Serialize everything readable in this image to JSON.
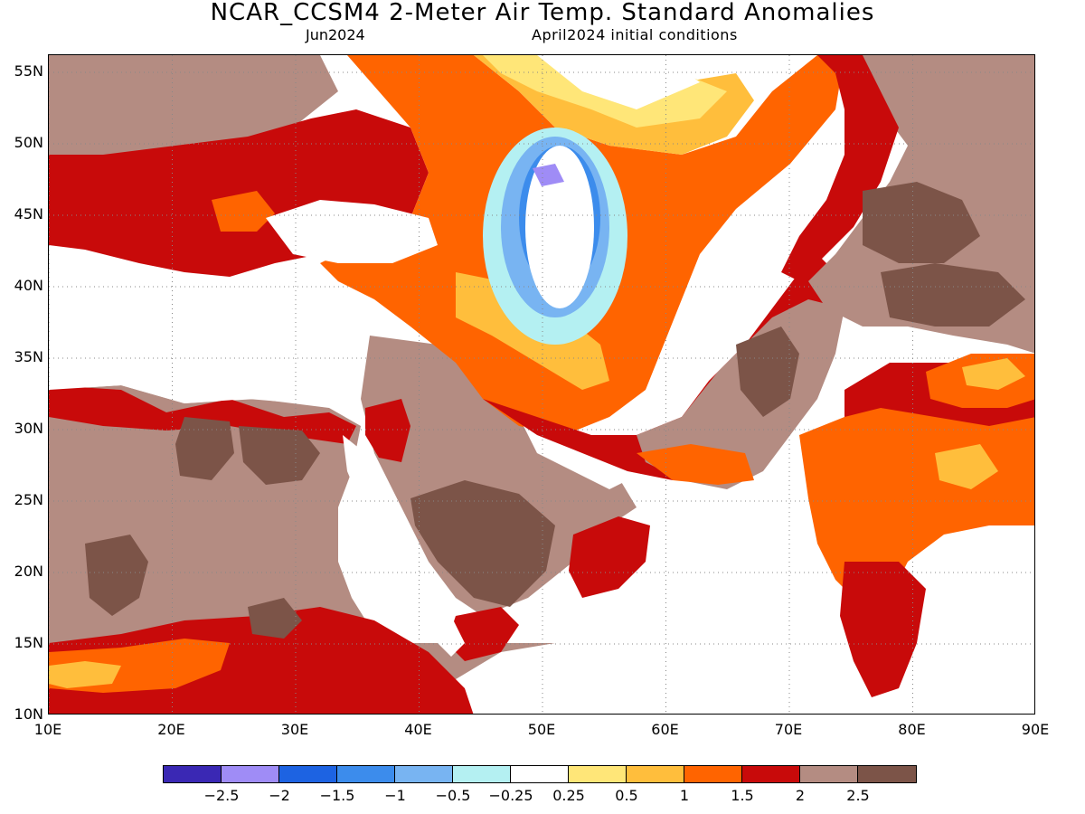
{
  "header": {
    "title": "NCAR_CCSM4 2-Meter Air Temp. Standard Anomalies",
    "valid_month": "Jun2024",
    "initial_conditions": "April2024 initial conditions"
  },
  "axes": {
    "lat_labels": [
      "55N",
      "50N",
      "45N",
      "40N",
      "35N",
      "30N",
      "25N",
      "20N",
      "15N",
      "10N"
    ],
    "lon_labels": [
      "10E",
      "20E",
      "30E",
      "40E",
      "50E",
      "60E",
      "70E",
      "80E",
      "90E"
    ],
    "lat_range": [
      10,
      56.2
    ],
    "lon_range": [
      10,
      90
    ],
    "grid": "dotted"
  },
  "colorbar": {
    "colors": [
      "#3a28b4",
      "#9f8cf6",
      "#1d63e2",
      "#3c8cec",
      "#78b4f2",
      "#b4f0f2",
      "#ffffff",
      "#ffe678",
      "#ffbe3c",
      "#ff6400",
      "#c80a0a",
      "#b48c82",
      "#7c5448"
    ],
    "labels": [
      "-2.5",
      "-2",
      "-1.5",
      "-1",
      "-0.5",
      "-0.25",
      "0.25",
      "0.5",
      "1",
      "1.5",
      "2",
      "2.5"
    ]
  },
  "map_fill": {
    "brown_light": "#b48c82",
    "brown_dark": "#7c5448",
    "red": "#c80a0a",
    "orange": "#ff6400",
    "light_orange": "#ffbe3c",
    "yellow": "#ffe678",
    "blue": "#3c8cec",
    "light_blue": "#78b4f2",
    "cyan": "#b4f0f2",
    "purple": "#9f8cf6"
  }
}
